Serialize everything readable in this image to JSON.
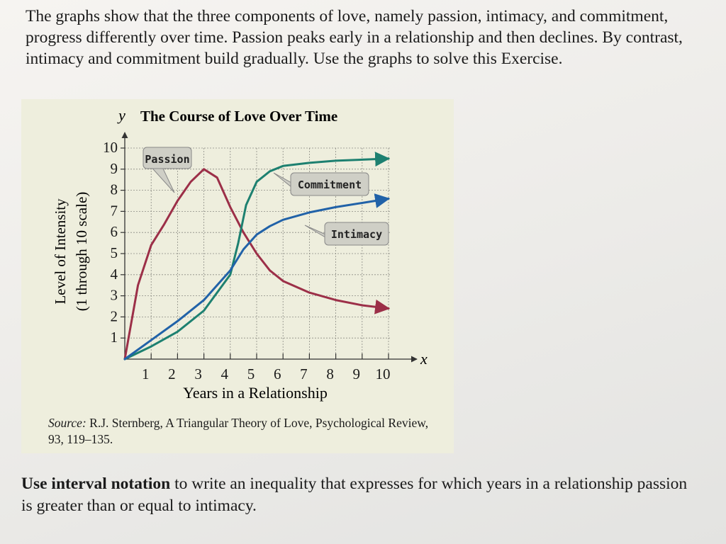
{
  "intro_text": "The graphs show that the three components of love, namely passion, intimacy, and commitment, progress differently over time. Passion peaks early in a relationship and then declines. By contrast, intimacy and commitment build gradually. Use the graphs to solve this Exercise.",
  "figure": {
    "source_label": "Source:",
    "source_text": "R.J. Sternberg, A Triangular Theory of Love, Psychological Review, 93, 119–135."
  },
  "question": {
    "bold_part": "Use interval notation",
    "rest": " to write an inequality that expresses for which years in a relationship passion is greater than or equal to intimacy."
  },
  "chart_data": {
    "type": "line",
    "title": "The Course of Love Over Time",
    "xlabel": "Years in a Relationship",
    "ylabel": "Level of Intensity (1 through 10 scale)",
    "x_axis_letter": "x",
    "y_axis_letter": "y",
    "xlim": [
      0,
      10
    ],
    "ylim": [
      0,
      10
    ],
    "x_ticks": [
      1,
      2,
      3,
      4,
      5,
      6,
      7,
      8,
      9,
      10
    ],
    "y_ticks": [
      1,
      2,
      3,
      4,
      5,
      6,
      7,
      8,
      9,
      10
    ],
    "grid": true,
    "series": [
      {
        "name": "Passion",
        "color": "#9c2f48",
        "x": [
          0,
          0.5,
          1,
          1.5,
          2,
          2.5,
          3,
          3.5,
          4,
          4.5,
          5,
          5.5,
          6,
          7,
          8,
          9,
          10
        ],
        "y": [
          0,
          3.5,
          5.4,
          6.4,
          7.5,
          8.4,
          9.0,
          8.6,
          7.2,
          6.0,
          5.0,
          4.2,
          3.7,
          3.15,
          2.8,
          2.55,
          2.4
        ]
      },
      {
        "name": "Commitment",
        "color": "#1d8070",
        "x": [
          0,
          1,
          2,
          3,
          4,
          4.3,
          4.6,
          5,
          5.5,
          6,
          7,
          8,
          9,
          10
        ],
        "y": [
          0,
          0.6,
          1.3,
          2.3,
          4.0,
          5.5,
          7.3,
          8.4,
          8.9,
          9.15,
          9.3,
          9.4,
          9.45,
          9.5
        ]
      },
      {
        "name": "Intimacy",
        "color": "#2162a8",
        "x": [
          0,
          1,
          2,
          3,
          4,
          4.5,
          5,
          5.5,
          6,
          7,
          8,
          9,
          10
        ],
        "y": [
          0,
          0.9,
          1.8,
          2.8,
          4.2,
          5.2,
          5.9,
          6.3,
          6.6,
          6.95,
          7.2,
          7.4,
          7.6
        ]
      }
    ]
  }
}
